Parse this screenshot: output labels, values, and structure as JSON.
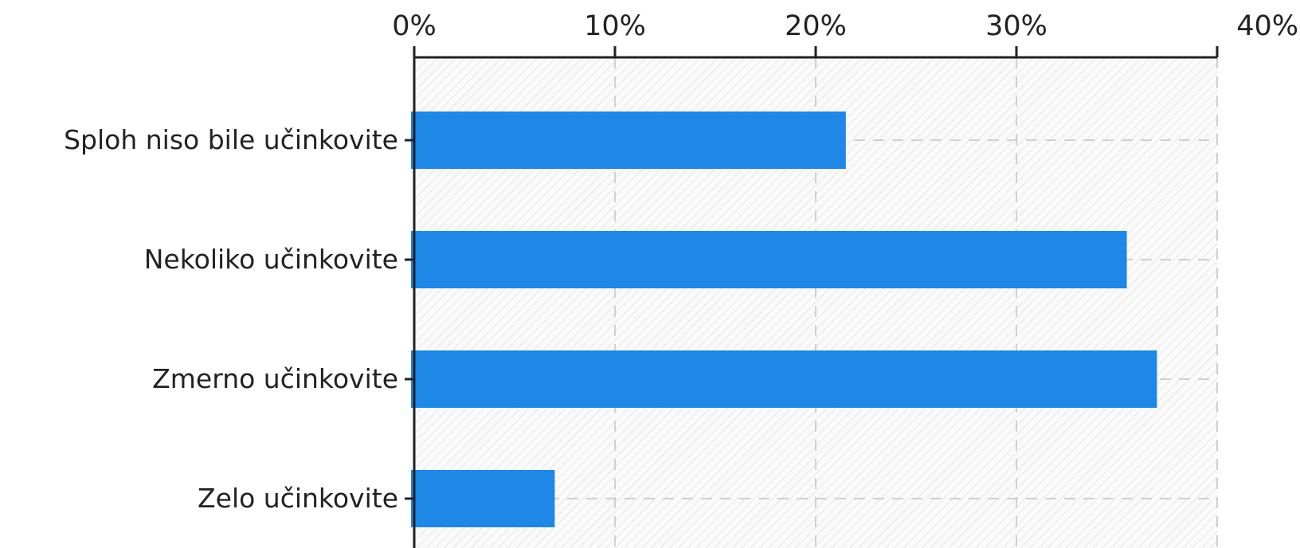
{
  "chart_data": {
    "type": "bar",
    "orientation": "horizontal",
    "title": "",
    "xlabel": "",
    "ylabel": "",
    "categories": [
      "Sploh niso bile učinkovite",
      "Nekoliko učinkovite",
      "Zmerno učinkovite ",
      "Zelo učinkovite"
    ],
    "values": [
      21.5,
      35.5,
      37.0,
      7.0
    ],
    "xlim": [
      0,
      40
    ],
    "xticks": [
      0,
      10,
      20,
      30,
      40
    ],
    "xtick_labels": [
      "0%",
      "10%",
      "20%",
      "30%",
      "40%"
    ],
    "x_axis_position": "top",
    "grid": true,
    "legend": "none",
    "colors": {
      "bar": "#1f87e5",
      "axis": "#222222",
      "grid": "#d0d0d0",
      "plot_hatch": "#e6e6e6",
      "plot_background": "#fafafa"
    }
  }
}
